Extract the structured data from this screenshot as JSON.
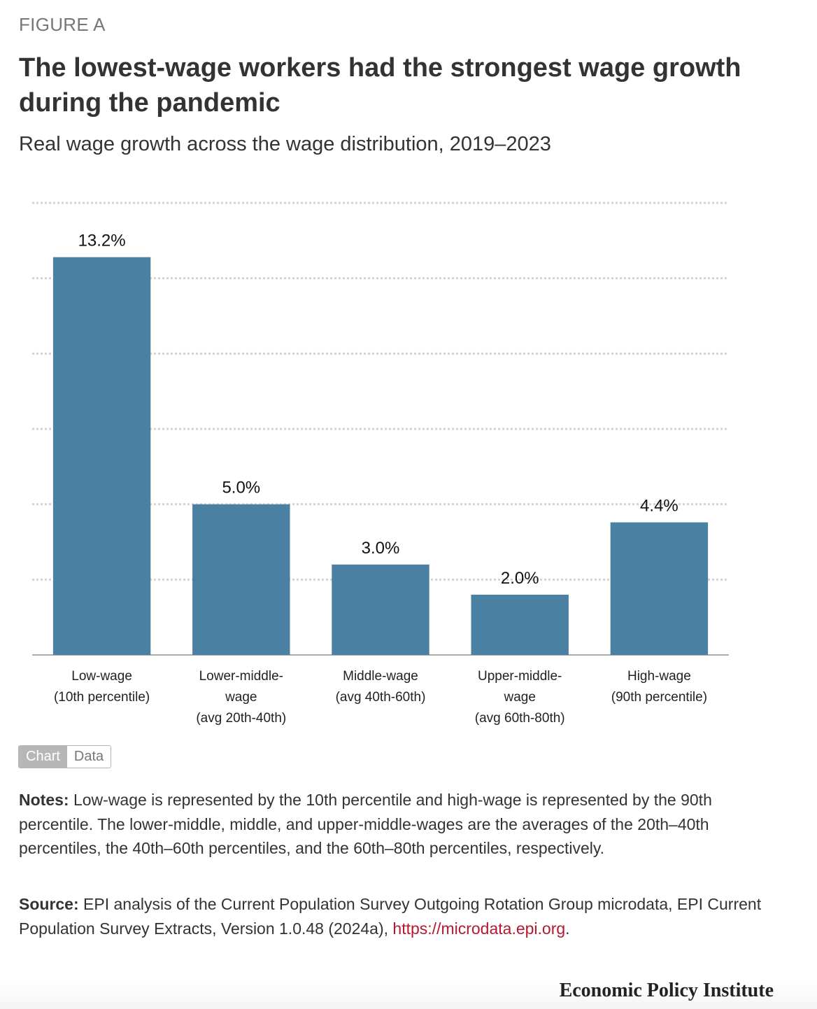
{
  "figure_label": "FIGURE A",
  "title": "The lowest-wage workers had the strongest wage growth during the pandemic",
  "subtitle": "Real wage growth across the wage distribution, 2019–2023",
  "toggle": {
    "chart_label": "Chart",
    "data_label": "Data",
    "active": "Chart"
  },
  "notes": {
    "label": "Notes:",
    "text": " Low-wage is represented by the 10th percentile and high-wage is represented by the 90th percentile. The lower-middle, middle, and upper-middle-wages are the averages of the 20th–40th percentiles, the 40th–60th percentiles, and the 60th–80th percentiles, respectively."
  },
  "source": {
    "label": "Source:",
    "text": " EPI analysis of the Current Population Survey Outgoing Rotation Group microdata, EPI Current Population Survey Extracts, Version 1.0.48 (2024a), ",
    "link": "https://microdata.epi.org",
    "trailing": "."
  },
  "brand": "Economic Policy Institute",
  "colors": {
    "bar": "#4a80a2",
    "gridline": "#d3d3d3",
    "axis": "#aaaaaa",
    "link": "#b5192e"
  },
  "chart_data": {
    "type": "bar",
    "categories": [
      [
        "Low-wage",
        "(10th percentile)"
      ],
      [
        "Lower-middle-",
        "wage",
        "(avg 20th-40th)"
      ],
      [
        "Middle-wage",
        "(avg 40th-60th)"
      ],
      [
        "Upper-middle-",
        "wage",
        "(avg 60th-80th)"
      ],
      [
        "High-wage",
        "(90th percentile)"
      ]
    ],
    "values": [
      13.2,
      5.0,
      3.0,
      2.0,
      4.4
    ],
    "value_labels": [
      "13.2%",
      "5.0%",
      "3.0%",
      "2.0%",
      "4.4%"
    ],
    "ylim": [
      0,
      15
    ],
    "y_gridlines": [
      2.5,
      5,
      7.5,
      10,
      12.5,
      15
    ],
    "grid": true,
    "y_tick_labels_shown": false,
    "legend": "none"
  }
}
